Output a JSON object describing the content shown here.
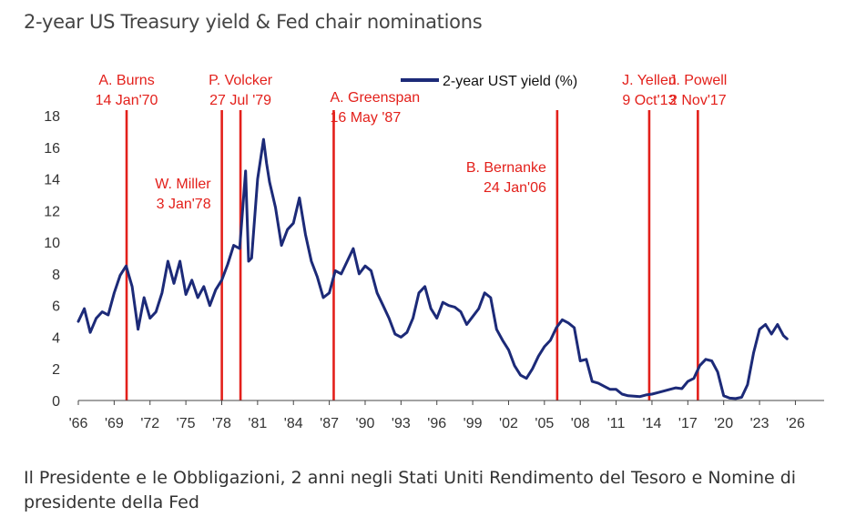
{
  "header": {
    "title": "2-year US Treasury yield & Fed chair nominations"
  },
  "caption": "Il Presidente e le Obbligazioni, 2 anni negli Stati Uniti Rendimento del Tesoro e Nomine di presidente della Fed",
  "colors": {
    "series": "#1c2a78",
    "nomination": "#e3201b",
    "axis": "#444444",
    "text": "#333333"
  },
  "chart_data": {
    "type": "line",
    "title": "2-year US Treasury yield & Fed chair nominations",
    "xlabel": "",
    "ylabel": "",
    "xlim": [
      1966,
      2026.5
    ],
    "ylim": [
      0,
      18
    ],
    "x_ticks": [
      1966,
      1969,
      1972,
      1975,
      1978,
      1981,
      1984,
      1987,
      1990,
      1993,
      1996,
      1999,
      2002,
      2005,
      2008,
      2011,
      2014,
      2017,
      2020,
      2023,
      2026
    ],
    "x_tick_labels": [
      "'66",
      "'69",
      "'72",
      "'75",
      "'78",
      "'81",
      "'84",
      "'87",
      "'90",
      "'93",
      "'96",
      "'99",
      "'02",
      "'05",
      "'08",
      "'11",
      "'14",
      "'17",
      "'20",
      "'23",
      "'26"
    ],
    "y_ticks": [
      0,
      2,
      4,
      6,
      8,
      10,
      12,
      14,
      16,
      18
    ],
    "y_tick_labels": [
      "0",
      "2",
      "4",
      "6",
      "8",
      "10",
      "12",
      "14",
      "16",
      "18"
    ],
    "legend": {
      "label": "2-year UST yield (%)",
      "position": "top-center"
    },
    "series": [
      {
        "name": "2-year UST yield (%)",
        "x": [
          1966.0,
          1966.5,
          1967.0,
          1967.5,
          1968.0,
          1968.5,
          1969.0,
          1969.5,
          1970.0,
          1970.5,
          1971.0,
          1971.5,
          1972.0,
          1972.5,
          1973.0,
          1973.5,
          1974.0,
          1974.5,
          1975.0,
          1975.5,
          1976.0,
          1976.5,
          1977.0,
          1977.5,
          1978.0,
          1978.5,
          1979.0,
          1979.5,
          1980.0,
          1980.25,
          1980.5,
          1981.0,
          1981.5,
          1981.75,
          1982.0,
          1982.5,
          1983.0,
          1983.5,
          1984.0,
          1984.5,
          1985.0,
          1985.5,
          1986.0,
          1986.5,
          1987.0,
          1987.5,
          1988.0,
          1988.5,
          1989.0,
          1989.5,
          1990.0,
          1990.5,
          1991.0,
          1991.5,
          1992.0,
          1992.5,
          1993.0,
          1993.5,
          1994.0,
          1994.5,
          1995.0,
          1995.5,
          1996.0,
          1996.5,
          1997.0,
          1997.5,
          1998.0,
          1998.5,
          1999.0,
          1999.5,
          2000.0,
          2000.5,
          2001.0,
          2001.5,
          2002.0,
          2002.5,
          2003.0,
          2003.5,
          2004.0,
          2004.5,
          2005.0,
          2005.5,
          2006.0,
          2006.5,
          2007.0,
          2007.5,
          2008.0,
          2008.5,
          2009.0,
          2009.5,
          2010.0,
          2010.5,
          2011.0,
          2011.5,
          2012.0,
          2012.5,
          2013.0,
          2013.5,
          2014.0,
          2014.5,
          2015.0,
          2015.5,
          2016.0,
          2016.5,
          2017.0,
          2017.5,
          2018.0,
          2018.5,
          2019.0,
          2019.5,
          2020.0,
          2020.5,
          2021.0,
          2021.5,
          2022.0,
          2022.5,
          2023.0,
          2023.5,
          2024.0,
          2024.5,
          2025.0,
          2025.3
        ],
        "y": [
          5.0,
          5.8,
          4.3,
          5.2,
          5.6,
          5.4,
          6.8,
          7.9,
          8.5,
          7.2,
          4.5,
          6.5,
          5.2,
          5.6,
          6.8,
          8.8,
          7.4,
          8.8,
          6.7,
          7.6,
          6.5,
          7.2,
          6.0,
          7.0,
          7.6,
          8.6,
          9.8,
          9.6,
          14.5,
          8.8,
          9.0,
          14.0,
          16.5,
          15.0,
          13.8,
          12.2,
          9.8,
          10.8,
          11.2,
          12.8,
          10.5,
          8.8,
          7.8,
          6.5,
          6.8,
          8.2,
          8.0,
          8.8,
          9.6,
          8.0,
          8.5,
          8.2,
          6.8,
          6.0,
          5.2,
          4.2,
          4.0,
          4.3,
          5.2,
          6.8,
          7.2,
          5.8,
          5.2,
          6.2,
          6.0,
          5.9,
          5.6,
          4.8,
          5.3,
          5.8,
          6.8,
          6.5,
          4.5,
          3.8,
          3.2,
          2.2,
          1.6,
          1.4,
          2.0,
          2.8,
          3.4,
          3.8,
          4.6,
          5.1,
          4.9,
          4.6,
          2.5,
          2.6,
          1.2,
          1.1,
          0.9,
          0.7,
          0.7,
          0.4,
          0.3,
          0.27,
          0.25,
          0.35,
          0.4,
          0.5,
          0.6,
          0.7,
          0.8,
          0.75,
          1.2,
          1.4,
          2.2,
          2.6,
          2.5,
          1.8,
          0.3,
          0.15,
          0.12,
          0.2,
          1.0,
          3.0,
          4.5,
          4.8,
          4.2,
          4.8,
          4.1,
          3.9
        ]
      }
    ],
    "nominations": [
      {
        "year": 1970.04,
        "name": "A. Burns",
        "date": "14 Jan'70"
      },
      {
        "year": 1978.01,
        "name": "W. Miller",
        "date": "3 Jan'78"
      },
      {
        "year": 1979.57,
        "name": "P. Volcker",
        "date": "27 Jul '79"
      },
      {
        "year": 1987.37,
        "name": "A. Greenspan",
        "date": "16 May '87"
      },
      {
        "year": 2006.07,
        "name": "B. Bernanke",
        "date": "24 Jan'06"
      },
      {
        "year": 2013.77,
        "name": "J. Yellen",
        "date": "9 Oct'13"
      },
      {
        "year": 2017.84,
        "name": "J. Powell",
        "date": "2 Nov'17"
      }
    ]
  }
}
